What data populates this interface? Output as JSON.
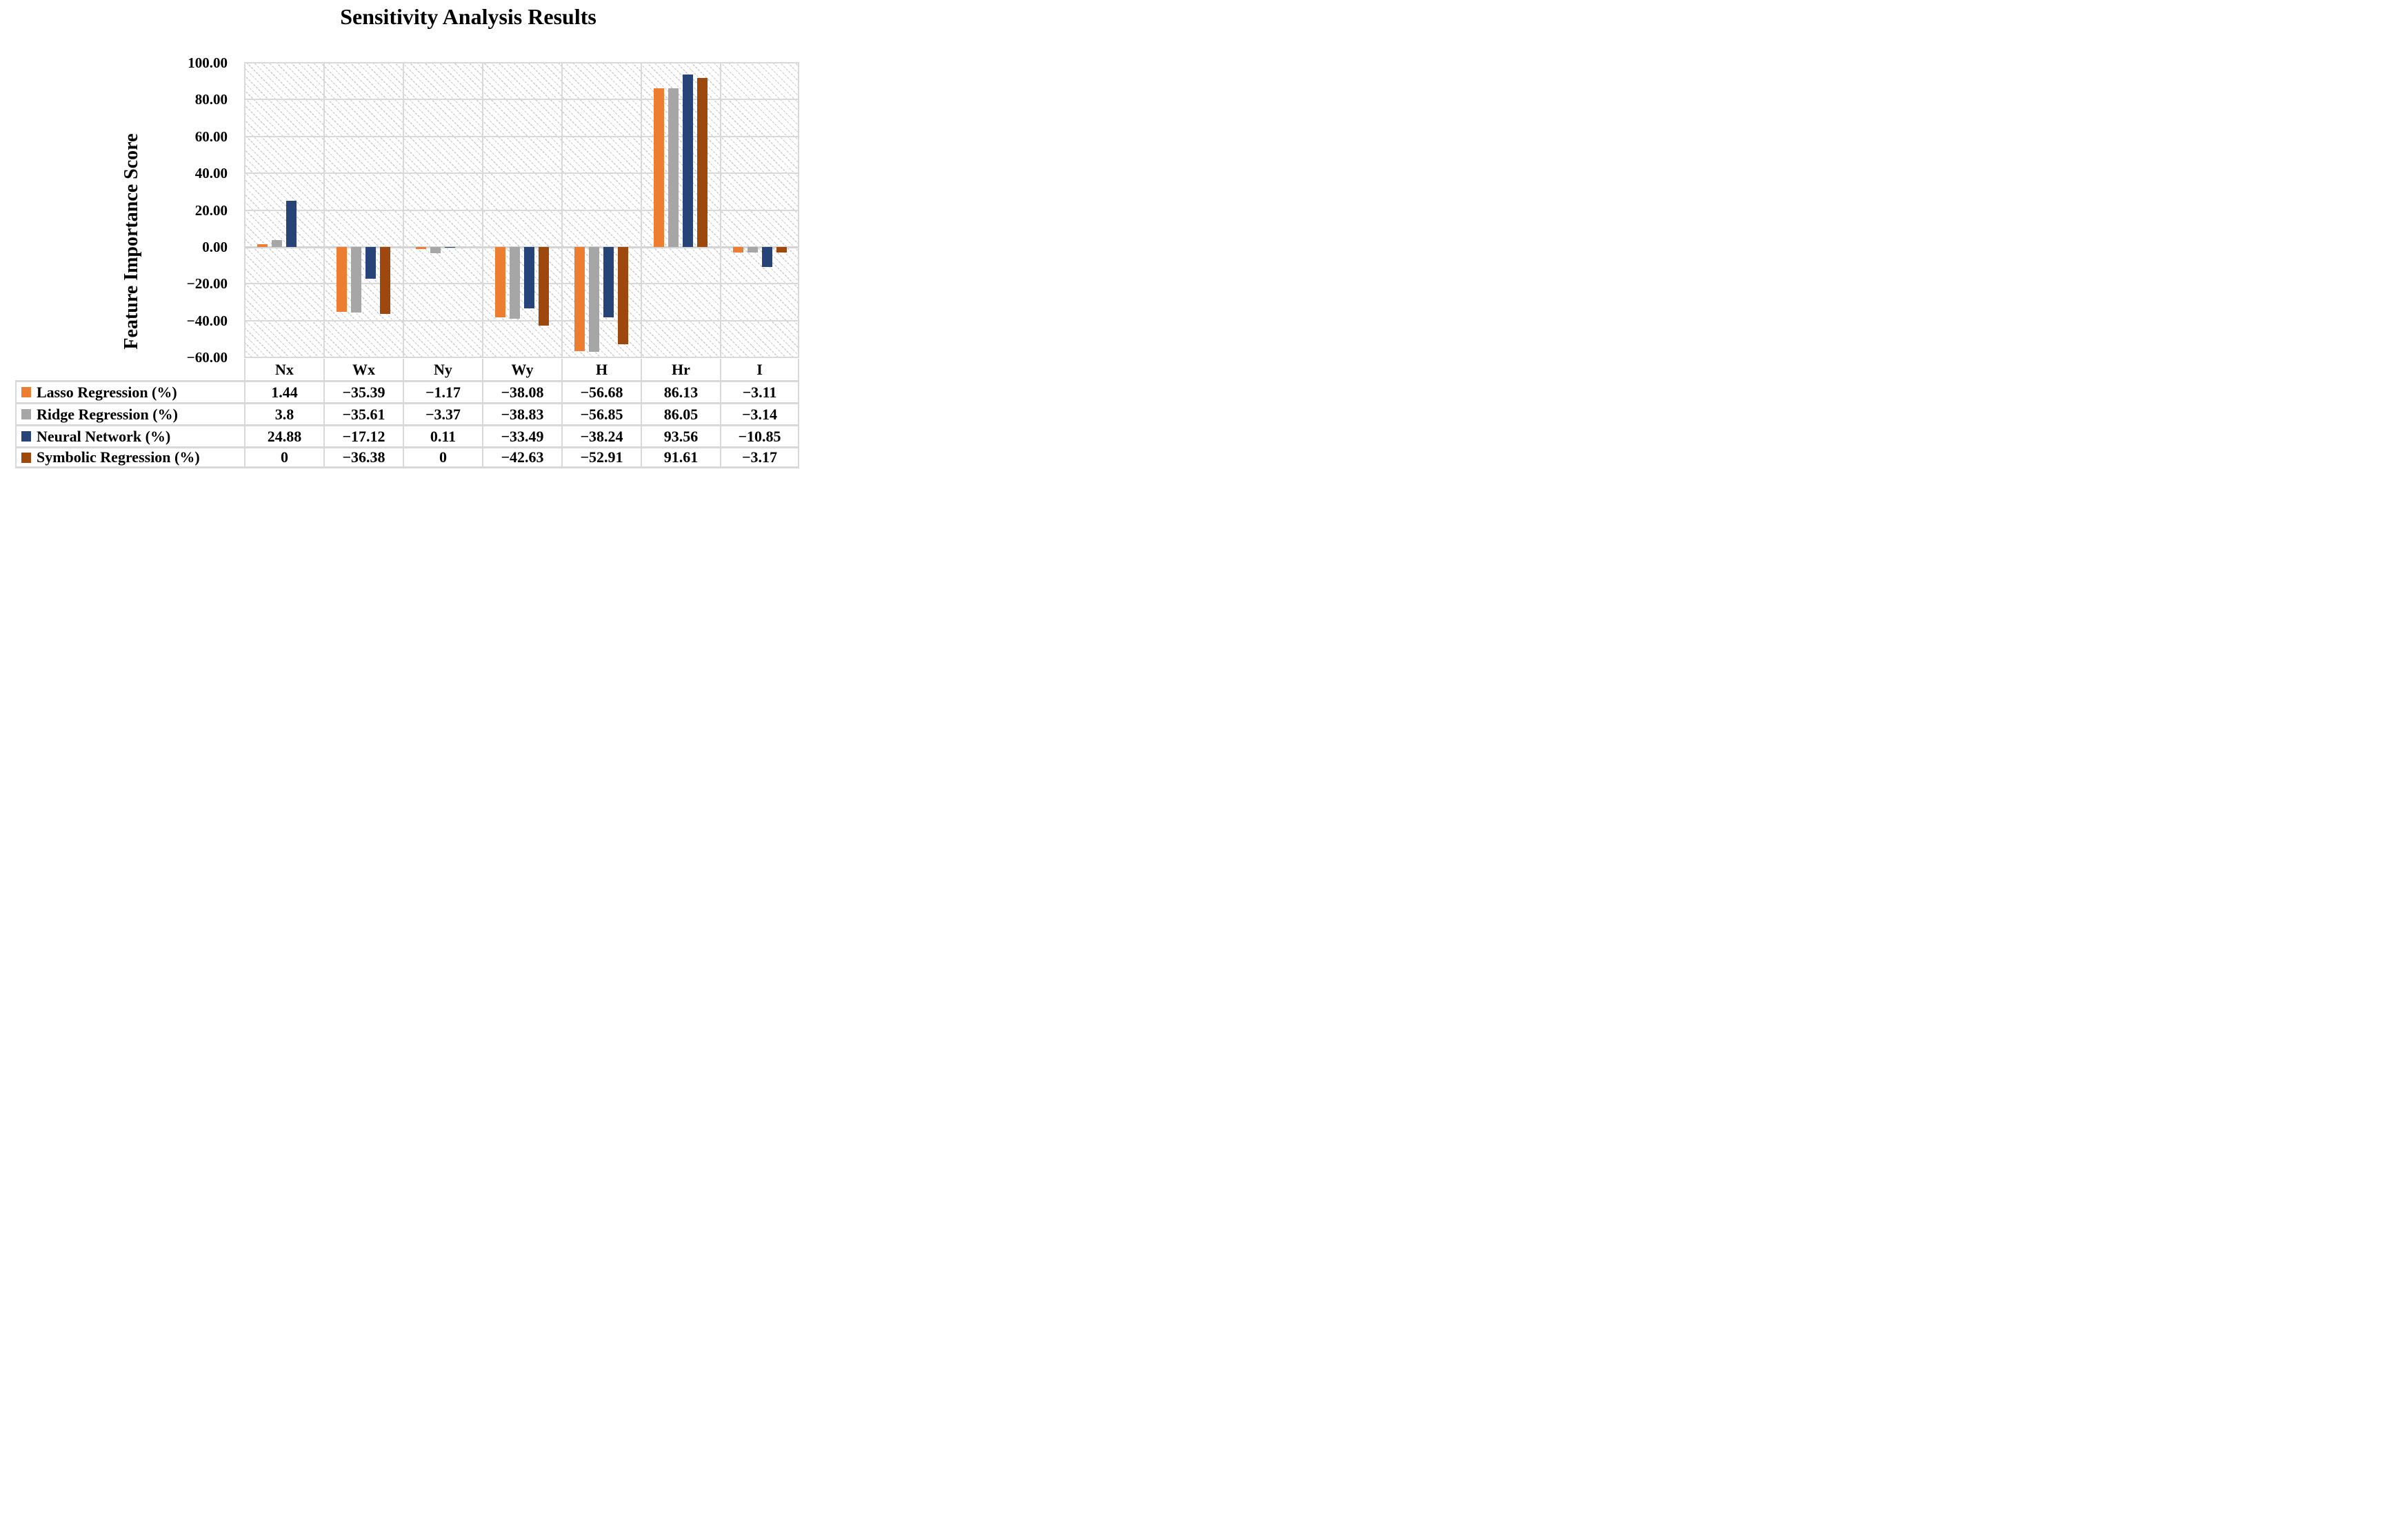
{
  "title": "Sensitivity Analysis Results",
  "y_axis": {
    "label": "Feature Importance Score",
    "ticks": [
      "100.00",
      "80.00",
      "60.00",
      "40.00",
      "20.00",
      "0.00",
      "−20.00",
      "−40.00",
      "−60.00"
    ],
    "max": 100,
    "min": -60,
    "step": 20
  },
  "chart_data": {
    "type": "bar",
    "title": "Sensitivity Analysis Results",
    "ylabel": "Feature Importance Score",
    "xlabel": "",
    "ylim": [
      -60,
      100
    ],
    "ytick_step": 20,
    "grid": true,
    "plot_background": "diagonal-hatch",
    "legend_position": "table-left",
    "categories": [
      "Nx",
      "Wx",
      "Ny",
      "Wy",
      "H",
      "Hr",
      "I"
    ],
    "series": [
      {
        "name": "Lasso Regression (%)",
        "color": "#ED7D31",
        "values": [
          1.44,
          -35.39,
          -1.17,
          -38.08,
          -56.68,
          86.13,
          -3.11
        ],
        "display": [
          "1.44",
          "−35.39",
          "−1.17",
          "−38.08",
          "−56.68",
          "86.13",
          "−3.11"
        ]
      },
      {
        "name": "Ridge Regression (%)",
        "color": "#A6A6A6",
        "values": [
          3.8,
          -35.61,
          -3.37,
          -38.83,
          -56.85,
          86.05,
          -3.14
        ],
        "display": [
          "3.8",
          "−35.61",
          "−3.37",
          "−38.83",
          "−56.85",
          "86.05",
          "−3.14"
        ]
      },
      {
        "name": "Neural Network (%)",
        "color": "#264478",
        "values": [
          24.88,
          -17.12,
          0.11,
          -33.49,
          -38.24,
          93.56,
          -10.85
        ],
        "display": [
          "24.88",
          "−17.12",
          "0.11",
          "−33.49",
          "−38.24",
          "93.56",
          "−10.85"
        ]
      },
      {
        "name": "Symbolic Regression (%)",
        "color": "#9E480E",
        "values": [
          0,
          -36.38,
          0,
          -42.63,
          -52.91,
          91.61,
          -3.17
        ],
        "display": [
          "0",
          "−36.38",
          "0",
          "−42.63",
          "−52.91",
          "91.61",
          "−3.17"
        ]
      }
    ]
  },
  "colors": {
    "gridline": "#D9D9D9",
    "zero_line": "#D4D4D4",
    "table_border": "#D9D9D9"
  }
}
